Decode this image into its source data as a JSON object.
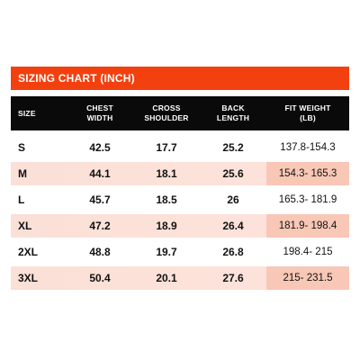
{
  "title": "SIZING CHART (INCH)",
  "headers": {
    "size": "SIZE",
    "chest_line1": "CHEST",
    "chest_line2": "WIDTH",
    "cross_line1": "CROSS",
    "cross_line2": "SHOULDER",
    "back_line1": "BACK",
    "back_line2": "LENGTH",
    "fit_line1": "FIT WEIGHT",
    "fit_line2": "(LB)"
  },
  "rows": [
    {
      "size": "S",
      "chest": "42.5",
      "shoulder": "17.7",
      "back": "25.2",
      "fit": "137.8-154.3"
    },
    {
      "size": "M",
      "chest": "44.1",
      "shoulder": "18.1",
      "back": "25.6",
      "fit": "154.3- 165.3"
    },
    {
      "size": "L",
      "chest": "45.7",
      "shoulder": "18.5",
      "back": "26",
      "fit": "165.3- 181.9"
    },
    {
      "size": "XL",
      "chest": "47.2",
      "shoulder": "18.9",
      "back": "26.4",
      "fit": "181.9- 198.4"
    },
    {
      "size": "2XL",
      "chest": "48.8",
      "shoulder": "19.7",
      "back": "26.8",
      "fit": "198.4- 215"
    },
    {
      "size": "3XL",
      "chest": "50.4",
      "shoulder": "20.1",
      "back": "27.6",
      "fit": "215- 231.5"
    }
  ],
  "colors": {
    "title_bar": "#f2400f",
    "header_bg": "#0a0a0a",
    "row_shade": "#fce3db",
    "fit_shade": "#f8c7b6"
  }
}
